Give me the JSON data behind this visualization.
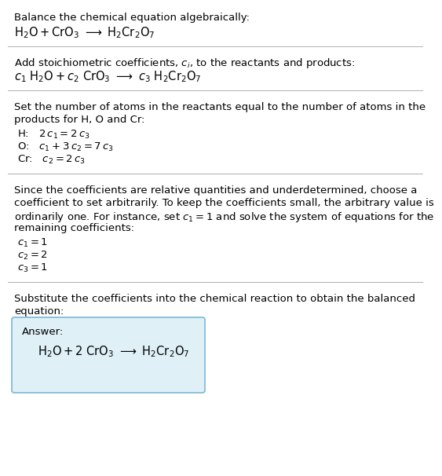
{
  "bg_color": "#ffffff",
  "text_color": "#000000",
  "line_color": "#b0b0b0",
  "font_size_body": 9.5,
  "font_size_eq": 10.5,
  "title_section": "Balance the chemical equation algebraically:",
  "add_coeff_title": "Add stoichiometric coefficients, $c_i$, to the reactants and products:",
  "set_atoms_line1": "Set the number of atoms in the reactants equal to the number of atoms in the",
  "set_atoms_line2": "products for H, O and Cr:",
  "since_line1": "Since the coefficients are relative quantities and underdetermined, choose a",
  "since_line2": "coefficient to set arbitrarily. To keep the coefficients small, the arbitrary value is",
  "since_line3": "ordinarily one. For instance, set $c_1 = 1$ and solve the system of equations for the",
  "since_line4": "remaining coefficients:",
  "substitute_line1": "Substitute the coefficients into the chemical reaction to obtain the balanced",
  "substitute_line2": "equation:",
  "answer_label": "Answer:",
  "answer_box_color": "#dff0f7",
  "answer_box_border": "#7ab8d4"
}
